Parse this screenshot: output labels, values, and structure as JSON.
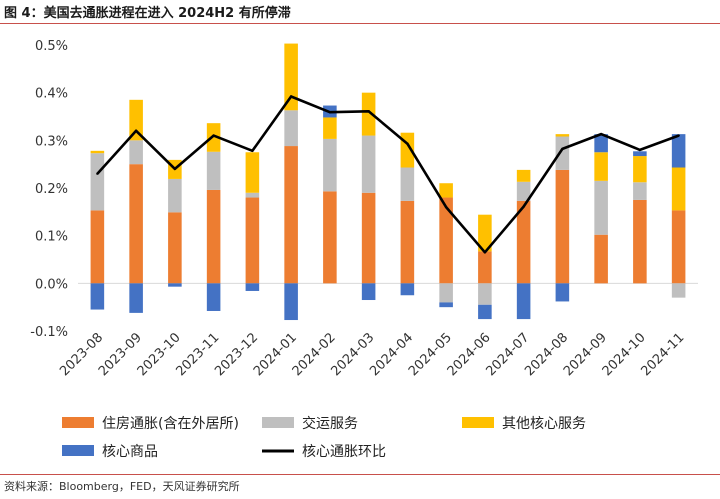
{
  "header": {
    "title": "图 4：美国去通胀进程在进入 2024H2 有所停滞"
  },
  "footer": {
    "source": "资料来源：Bloomberg，FED，天风证券研究所"
  },
  "colors": {
    "housing": "#ED7D31",
    "services": "#BFBFBF",
    "other_services": "#FFC000",
    "goods": "#4472C4",
    "core_line": "#000000",
    "rule": "#C8504B"
  },
  "chart_data": {
    "type": "bar",
    "stacked": true,
    "title": "",
    "xlabel": "",
    "ylabel": "",
    "ylim": [
      -0.1,
      0.5
    ],
    "yticks": [
      -0.1,
      0.0,
      0.1,
      0.2,
      0.3,
      0.4,
      0.5
    ],
    "ytick_labels": [
      "-0.1%",
      "0.0%",
      "0.1%",
      "0.2%",
      "0.3%",
      "0.4%",
      "0.5%"
    ],
    "categories": [
      "2023-08",
      "2023-09",
      "2023-10",
      "2023-11",
      "2023-12",
      "2024-01",
      "2024-02",
      "2024-03",
      "2024-04",
      "2024-05",
      "2024-06",
      "2024-07",
      "2024-08",
      "2024-09",
      "2024-10",
      "2024-11"
    ],
    "series": [
      {
        "name": "住房通胀(含在外居所)",
        "kind": "bar",
        "color_key": "housing",
        "values": [
          0.153,
          0.25,
          0.149,
          0.196,
          0.18,
          0.288,
          0.193,
          0.19,
          0.173,
          0.18,
          0.067,
          0.173,
          0.238,
          0.102,
          0.175,
          0.153
        ]
      },
      {
        "name": "交运服务",
        "kind": "bar",
        "color_key": "services",
        "values": [
          0.12,
          0.05,
          0.07,
          0.08,
          0.01,
          0.075,
          0.11,
          0.12,
          0.07,
          -0.04,
          -0.045,
          0.04,
          0.07,
          0.113,
          0.037,
          -0.03
        ]
      },
      {
        "name": "其他核心服务",
        "kind": "bar",
        "color_key": "other_services",
        "values": [
          0.005,
          0.085,
          0.04,
          0.06,
          0.085,
          0.14,
          0.045,
          0.09,
          0.073,
          0.03,
          0.077,
          0.025,
          0.005,
          0.06,
          0.055,
          0.09
        ]
      },
      {
        "name": "核心商品",
        "kind": "bar",
        "color_key": "goods",
        "values": [
          -0.055,
          -0.062,
          -0.007,
          -0.058,
          -0.016,
          -0.077,
          0.025,
          -0.035,
          -0.025,
          -0.01,
          -0.03,
          -0.075,
          -0.038,
          0.038,
          0.01,
          0.07
        ]
      },
      {
        "name": "核心通胀环比",
        "kind": "line",
        "color_key": "core_line",
        "values": [
          0.23,
          0.32,
          0.24,
          0.31,
          0.278,
          0.392,
          0.359,
          0.361,
          0.293,
          0.16,
          0.065,
          0.161,
          0.282,
          0.313,
          0.28,
          0.31
        ]
      }
    ],
    "legend_position": "bottom",
    "grid": false
  }
}
